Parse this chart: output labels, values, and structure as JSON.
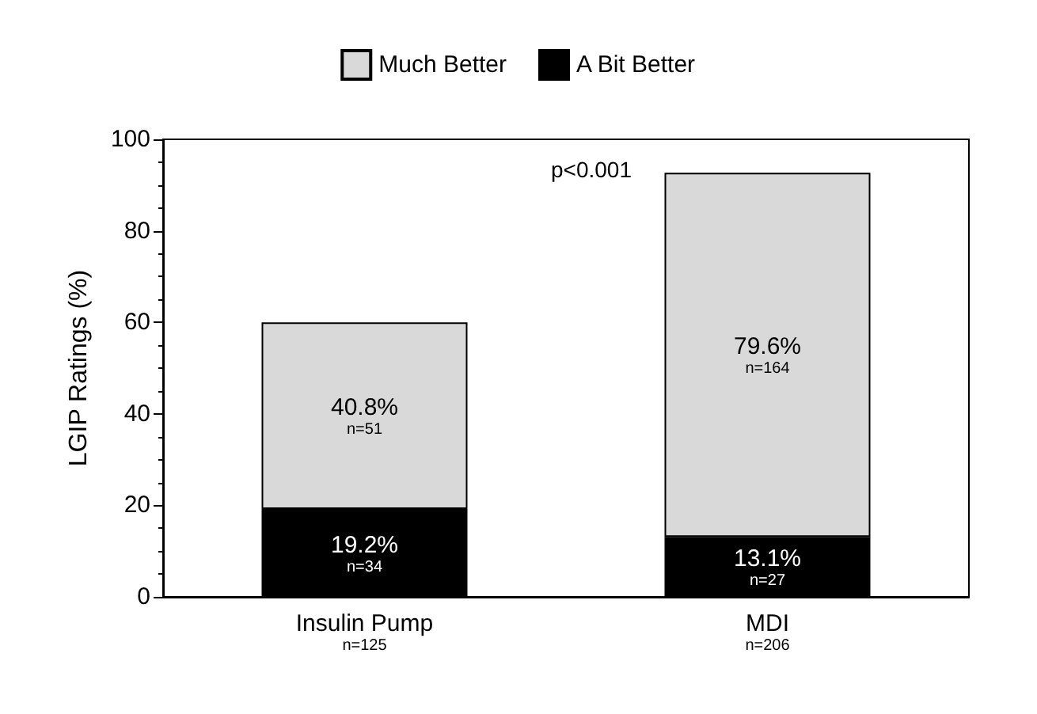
{
  "chart_data": {
    "type": "bar",
    "stacked": true,
    "ylabel": "LGIP Ratings (%)",
    "categories": [
      "Insulin Pump\nn=125",
      "MDI\nn=206"
    ],
    "series": [
      {
        "name": "A Bit Better",
        "color": "#000000",
        "values": [
          19.2,
          13.1
        ],
        "value_labels": [
          "19.2%\nn=34",
          "13.1%\nn=27"
        ]
      },
      {
        "name": "Much Better",
        "color": "#d9d9d9",
        "values": [
          40.8,
          79.6
        ],
        "value_labels": [
          "40.8%\nn=51",
          "79.6%\nn=164"
        ]
      }
    ],
    "ylim": [
      0,
      100
    ],
    "yticks": [
      0,
      20,
      40,
      60,
      80,
      100
    ],
    "grid": false,
    "legend": "top",
    "annotations": [
      "p<0.001"
    ]
  }
}
